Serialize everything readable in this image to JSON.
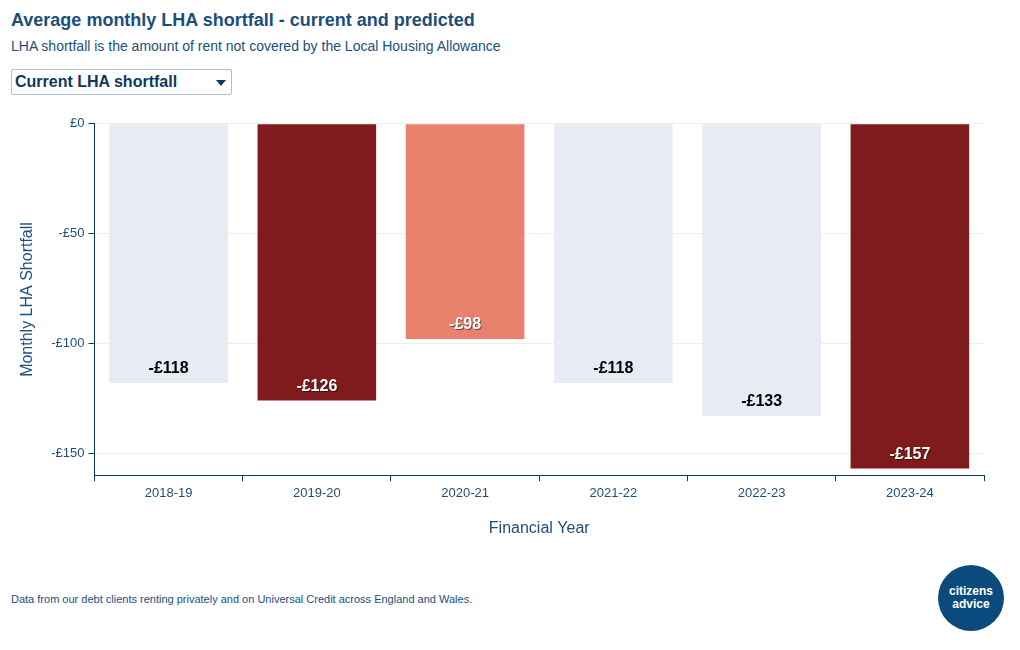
{
  "chart_data": {
    "type": "bar",
    "title": "Average monthly LHA shortfall - current and predicted",
    "subtitle": "LHA shortfall is the amount of rent not covered by the Local Housing Allowance",
    "categories": [
      "2018-19",
      "2019-20",
      "2020-21",
      "2021-22",
      "2022-23",
      "2023-24"
    ],
    "values": [
      -118,
      -126,
      -98,
      -118,
      -133,
      -157
    ],
    "value_labels": [
      "-£118",
      "-£126",
      "-£98",
      "-£118",
      "-£133",
      "-£157"
    ],
    "colors": [
      "#e8ebf3",
      "#7f1a1d",
      "#e8826c",
      "#e8ebf3",
      "#e8ebf3",
      "#7f1a1d"
    ],
    "data_labels": true,
    "x_label": "Financial Year",
    "y_label": "Monthly LHA Shortfall",
    "ylim": [
      -160,
      0
    ],
    "yticks": [
      {
        "value": -150,
        "label": "-£150"
      },
      {
        "value": -100,
        "label": "-£100"
      },
      {
        "value": -50,
        "label": "-£50"
      },
      {
        "value": 0,
        "label": "£0"
      }
    ],
    "grid": true
  },
  "controls": {
    "dropdown": "Current LHA shortfall"
  },
  "footer": {
    "note": "Data from our debt clients renting privately and on Universal Credit across England and Wales.",
    "logo": [
      "citizens",
      "advice"
    ]
  }
}
